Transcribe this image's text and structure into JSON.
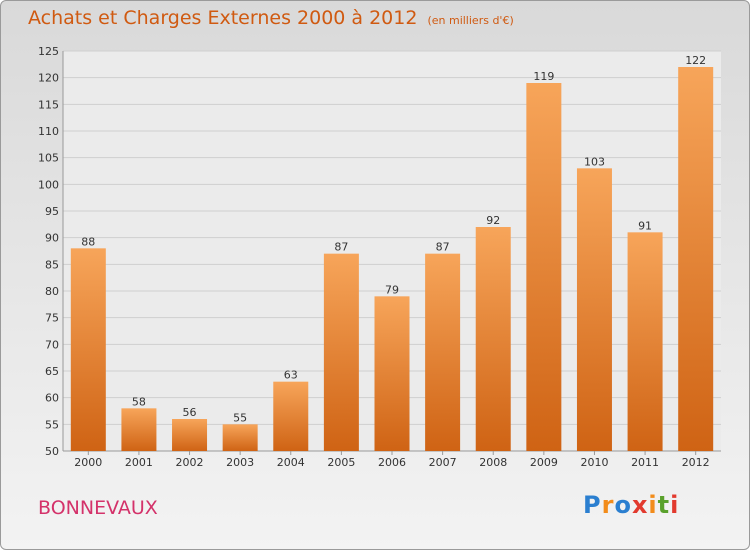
{
  "header": {
    "title": "Achats et Charges Externes 2000 à 2012",
    "unit": "(en milliers d'€)"
  },
  "footer": {
    "city": "BONNEVAUX"
  },
  "logo": {
    "letters": [
      "P",
      "r",
      "o",
      "x",
      "i",
      "t",
      "i"
    ],
    "colors": [
      "#2b7fd0",
      "#f28c1b",
      "#2b7fd0",
      "#e23a2e",
      "#f28c1b",
      "#5aa12c",
      "#e23a2e"
    ]
  },
  "chart_data": {
    "type": "bar",
    "categories": [
      "2000",
      "2001",
      "2002",
      "2003",
      "2004",
      "2005",
      "2006",
      "2007",
      "2008",
      "2009",
      "2010",
      "2011",
      "2012"
    ],
    "values": [
      88,
      58,
      56,
      55,
      63,
      87,
      79,
      87,
      92,
      119,
      103,
      91,
      122
    ],
    "title": "Achats et Charges Externes 2000 à 2012",
    "xlabel": "",
    "ylabel": "",
    "ylim": [
      50,
      125
    ],
    "yticks": [
      50,
      55,
      60,
      65,
      70,
      75,
      80,
      85,
      90,
      95,
      100,
      105,
      110,
      115,
      120,
      125
    ],
    "grid": true,
    "colors": {
      "bar_top": "#f7a55a",
      "bar_bottom": "#cf6314",
      "grid": "#cfcfcf",
      "title": "#d05a11",
      "city": "#d4326a"
    }
  }
}
